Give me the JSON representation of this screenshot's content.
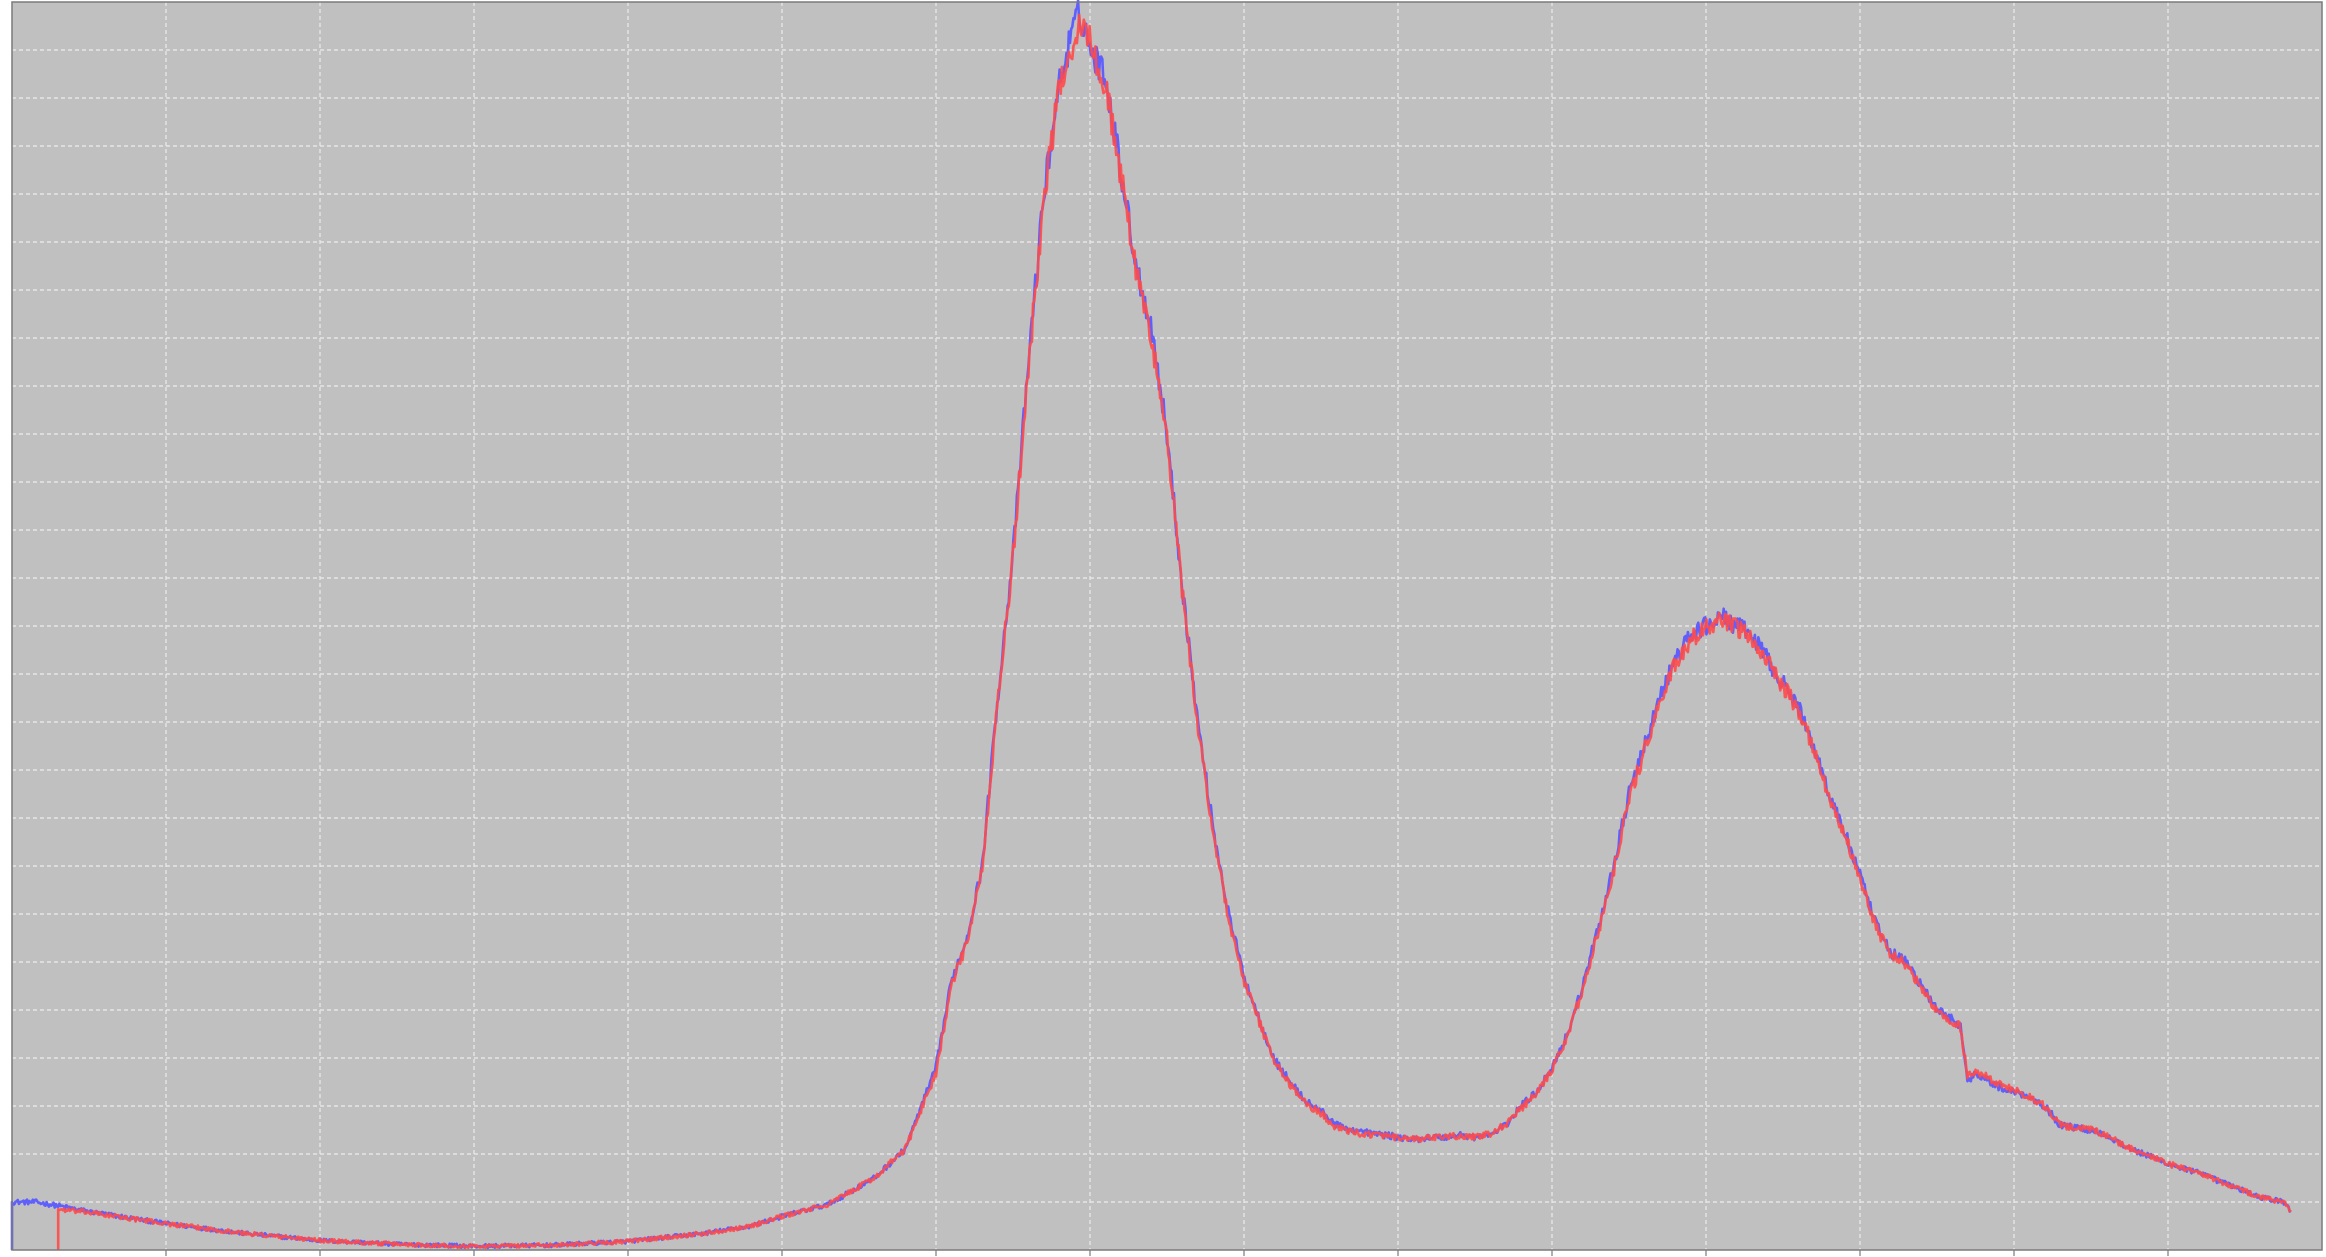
{
  "chart_data": {
    "type": "line",
    "title": "",
    "xlabel": "",
    "ylabel": "",
    "grid": true,
    "xlim": [
      0,
      1500
    ],
    "ylim": [
      0,
      26
    ],
    "x_grid_step": 100,
    "y_grid_step": 1,
    "colors": {
      "background": "#c0c0c0",
      "grid": "#ececec",
      "frame": "#7a7a7a"
    },
    "series": [
      {
        "color": "#5a5aff",
        "points": [
          [
            0,
            0
          ],
          [
            0,
            1
          ],
          [
            5,
            1
          ],
          [
            15,
            1
          ],
          [
            25,
            0.95
          ],
          [
            50,
            0.8
          ],
          [
            100,
            0.55
          ],
          [
            150,
            0.35
          ],
          [
            200,
            0.2
          ],
          [
            250,
            0.12
          ],
          [
            300,
            0.08
          ],
          [
            350,
            0.1
          ],
          [
            400,
            0.18
          ],
          [
            450,
            0.35
          ],
          [
            480,
            0.5
          ],
          [
            500,
            0.7
          ],
          [
            530,
            0.95
          ],
          [
            560,
            1.5
          ],
          [
            580,
            2.1
          ],
          [
            600,
            3.8
          ],
          [
            610,
            5.6
          ],
          [
            620,
            6.5
          ],
          [
            630,
            8.0
          ],
          [
            640,
            11.5
          ],
          [
            650,
            14.5
          ],
          [
            660,
            18.5
          ],
          [
            670,
            22.0
          ],
          [
            680,
            24.3
          ],
          [
            688,
            25.3
          ],
          [
            692,
            25.7
          ],
          [
            696,
            25.6
          ],
          [
            700,
            25.0
          ],
          [
            710,
            24.5
          ],
          [
            720,
            22.5
          ],
          [
            730,
            20.5
          ],
          [
            740,
            19.2
          ],
          [
            750,
            17.0
          ],
          [
            760,
            13.8
          ],
          [
            770,
            11.0
          ],
          [
            780,
            8.8
          ],
          [
            790,
            7.0
          ],
          [
            800,
            5.7
          ],
          [
            810,
            4.8
          ],
          [
            820,
            3.95
          ],
          [
            830,
            3.5
          ],
          [
            840,
            3.1
          ],
          [
            850,
            2.9
          ],
          [
            860,
            2.6
          ],
          [
            870,
            2.5
          ],
          [
            880,
            2.45
          ],
          [
            900,
            2.35
          ],
          [
            910,
            2.3
          ],
          [
            920,
            2.35
          ],
          [
            930,
            2.35
          ],
          [
            940,
            2.4
          ],
          [
            950,
            2.35
          ],
          [
            960,
            2.4
          ],
          [
            970,
            2.6
          ],
          [
            980,
            3.0
          ],
          [
            990,
            3.3
          ],
          [
            1000,
            3.8
          ],
          [
            1010,
            4.5
          ],
          [
            1020,
            5.5
          ],
          [
            1030,
            6.7
          ],
          [
            1040,
            8.0
          ],
          [
            1050,
            9.5
          ],
          [
            1060,
            10.5
          ],
          [
            1070,
            11.5
          ],
          [
            1080,
            12.3
          ],
          [
            1090,
            12.8
          ],
          [
            1100,
            13.0
          ],
          [
            1110,
            13.2
          ],
          [
            1120,
            13.0
          ],
          [
            1130,
            12.8
          ],
          [
            1140,
            12.3
          ],
          [
            1150,
            11.8
          ],
          [
            1160,
            11.3
          ],
          [
            1170,
            10.5
          ],
          [
            1180,
            9.5
          ],
          [
            1190,
            8.7
          ],
          [
            1200,
            7.8
          ],
          [
            1210,
            6.8
          ],
          [
            1220,
            6.2
          ],
          [
            1230,
            6.0
          ],
          [
            1240,
            5.5
          ],
          [
            1250,
            5.0
          ],
          [
            1260,
            4.8
          ],
          [
            1265,
            4.7
          ],
          [
            1270,
            3.5
          ],
          [
            1275,
            3.7
          ],
          [
            1290,
            3.4
          ],
          [
            1310,
            3.2
          ],
          [
            1320,
            3.0
          ],
          [
            1330,
            2.6
          ],
          [
            1350,
            2.5
          ],
          [
            1360,
            2.4
          ],
          [
            1370,
            2.2
          ],
          [
            1380,
            2.05
          ],
          [
            1400,
            1.8
          ],
          [
            1420,
            1.6
          ],
          [
            1440,
            1.35
          ],
          [
            1460,
            1.1
          ],
          [
            1475,
            1.0
          ],
          [
            1478,
            0.9
          ],
          [
            1480,
            0.8
          ]
        ]
      },
      {
        "color": "#ff4a4a",
        "points": [
          [
            30,
            0
          ],
          [
            30,
            0.85
          ],
          [
            50,
            0.78
          ],
          [
            100,
            0.55
          ],
          [
            150,
            0.35
          ],
          [
            200,
            0.2
          ],
          [
            250,
            0.12
          ],
          [
            300,
            0.08
          ],
          [
            350,
            0.1
          ],
          [
            400,
            0.18
          ],
          [
            450,
            0.35
          ],
          [
            480,
            0.5
          ],
          [
            500,
            0.7
          ],
          [
            530,
            0.95
          ],
          [
            560,
            1.5
          ],
          [
            580,
            2.1
          ],
          [
            600,
            3.7
          ],
          [
            610,
            5.5
          ],
          [
            620,
            6.4
          ],
          [
            630,
            7.9
          ],
          [
            640,
            11.4
          ],
          [
            650,
            14.4
          ],
          [
            660,
            18.4
          ],
          [
            670,
            21.9
          ],
          [
            680,
            24.2
          ],
          [
            688,
            25.1
          ],
          [
            694,
            25.5
          ],
          [
            698,
            25.4
          ],
          [
            702,
            24.9
          ],
          [
            710,
            24.3
          ],
          [
            720,
            22.4
          ],
          [
            730,
            20.4
          ],
          [
            740,
            19.0
          ],
          [
            750,
            16.9
          ],
          [
            760,
            13.7
          ],
          [
            770,
            10.9
          ],
          [
            780,
            8.7
          ],
          [
            790,
            6.9
          ],
          [
            800,
            5.6
          ],
          [
            810,
            4.75
          ],
          [
            820,
            3.9
          ],
          [
            830,
            3.45
          ],
          [
            840,
            3.05
          ],
          [
            850,
            2.85
          ],
          [
            860,
            2.55
          ],
          [
            870,
            2.45
          ],
          [
            880,
            2.42
          ],
          [
            900,
            2.33
          ],
          [
            910,
            2.3
          ],
          [
            920,
            2.33
          ],
          [
            930,
            2.35
          ],
          [
            940,
            2.38
          ],
          [
            950,
            2.35
          ],
          [
            960,
            2.42
          ],
          [
            970,
            2.62
          ],
          [
            980,
            2.95
          ],
          [
            990,
            3.25
          ],
          [
            1000,
            3.75
          ],
          [
            1010,
            4.45
          ],
          [
            1020,
            5.45
          ],
          [
            1030,
            6.6
          ],
          [
            1040,
            7.9
          ],
          [
            1050,
            9.4
          ],
          [
            1060,
            10.4
          ],
          [
            1070,
            11.4
          ],
          [
            1080,
            12.2
          ],
          [
            1090,
            12.7
          ],
          [
            1100,
            12.95
          ],
          [
            1110,
            13.1
          ],
          [
            1120,
            12.95
          ],
          [
            1130,
            12.75
          ],
          [
            1140,
            12.25
          ],
          [
            1150,
            11.75
          ],
          [
            1160,
            11.25
          ],
          [
            1170,
            10.45
          ],
          [
            1180,
            9.45
          ],
          [
            1190,
            8.65
          ],
          [
            1200,
            7.75
          ],
          [
            1210,
            6.75
          ],
          [
            1220,
            6.15
          ],
          [
            1230,
            5.95
          ],
          [
            1240,
            5.45
          ],
          [
            1250,
            4.95
          ],
          [
            1260,
            4.75
          ],
          [
            1265,
            4.65
          ],
          [
            1270,
            3.6
          ],
          [
            1275,
            3.75
          ],
          [
            1290,
            3.45
          ],
          [
            1310,
            3.2
          ],
          [
            1320,
            3.0
          ],
          [
            1330,
            2.6
          ],
          [
            1350,
            2.5
          ],
          [
            1360,
            2.4
          ],
          [
            1370,
            2.2
          ],
          [
            1380,
            2.05
          ],
          [
            1400,
            1.8
          ],
          [
            1420,
            1.6
          ],
          [
            1440,
            1.35
          ],
          [
            1460,
            1.1
          ],
          [
            1475,
            1.0
          ],
          [
            1478,
            0.9
          ],
          [
            1480,
            0.8
          ]
        ]
      }
    ]
  }
}
